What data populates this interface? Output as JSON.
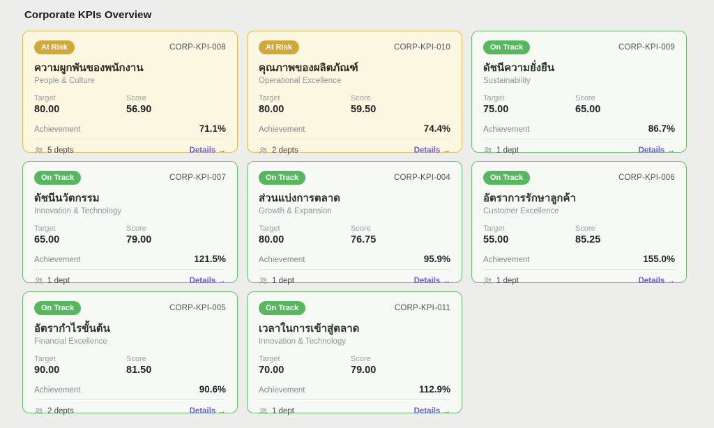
{
  "page": {
    "title": "Corporate KPIs Overview"
  },
  "labels": {
    "target": "Target",
    "score": "Score",
    "achievement": "Achievement",
    "details": "Details →"
  },
  "colors": {
    "at_risk_badge": "#d0a83c",
    "at_risk_border": "#e2bc4b",
    "at_risk_card_bg": "#fbf7e1",
    "at_risk_bar": "#d4b13e",
    "on_track_badge": "#57b75f",
    "on_track_border": "#67bd6b",
    "on_track_card_bg": "#f7faf4",
    "on_track_bar": "#5db964",
    "details_link": "#6d5ce6",
    "page_bg": "#edeeec"
  },
  "cards": [
    {
      "status": "At Risk",
      "variant": "at-risk",
      "kpi_id": "CORP-KPI-008",
      "title": "ความผูกพันของพนักงาน",
      "category": "People & Culture",
      "target": "80.00",
      "score": "56.90",
      "achievement": "71.1%",
      "progress_percent": 71.1,
      "departments": "5 depts"
    },
    {
      "status": "At Risk",
      "variant": "at-risk",
      "kpi_id": "CORP-KPI-010",
      "title": "คุณภาพของผลิตภัณฑ์",
      "category": "Operational Excellence",
      "target": "80.00",
      "score": "59.50",
      "achievement": "74.4%",
      "progress_percent": 74.4,
      "departments": "2 depts"
    },
    {
      "status": "On Track",
      "variant": "on-track",
      "kpi_id": "CORP-KPI-009",
      "title": "ดัชนีความยั่งยืน",
      "category": "Sustainability",
      "target": "75.00",
      "score": "65.00",
      "achievement": "86.7%",
      "progress_percent": 86.7,
      "departments": "1 dept"
    },
    {
      "status": "On Track",
      "variant": "on-track",
      "kpi_id": "CORP-KPI-007",
      "title": "ดัชนีนวัตกรรม",
      "category": "Innovation & Technology",
      "target": "65.00",
      "score": "79.00",
      "achievement": "121.5%",
      "progress_percent": 121.5,
      "departments": "1 dept"
    },
    {
      "status": "On Track",
      "variant": "on-track",
      "kpi_id": "CORP-KPI-004",
      "title": "ส่วนแบ่งการตลาด",
      "category": "Growth & Expansion",
      "target": "80.00",
      "score": "76.75",
      "achievement": "95.9%",
      "progress_percent": 95.9,
      "departments": "1 dept"
    },
    {
      "status": "On Track",
      "variant": "on-track",
      "kpi_id": "CORP-KPI-006",
      "title": "อัตราการรักษาลูกค้า",
      "category": "Customer Excellence",
      "target": "55.00",
      "score": "85.25",
      "achievement": "155.0%",
      "progress_percent": 155.0,
      "departments": "1 dept"
    },
    {
      "status": "On Track",
      "variant": "on-track",
      "kpi_id": "CORP-KPI-005",
      "title": "อัตรากำไรขั้นต้น",
      "category": "Financial Excellence",
      "target": "90.00",
      "score": "81.50",
      "achievement": "90.6%",
      "progress_percent": 90.6,
      "departments": "2 depts"
    },
    {
      "status": "On Track",
      "variant": "on-track",
      "kpi_id": "CORP-KPI-011",
      "title": "เวลาในการเข้าสู่ตลาด",
      "category": "Innovation & Technology",
      "target": "70.00",
      "score": "79.00",
      "achievement": "112.9%",
      "progress_percent": 112.9,
      "departments": "1 dept"
    }
  ]
}
